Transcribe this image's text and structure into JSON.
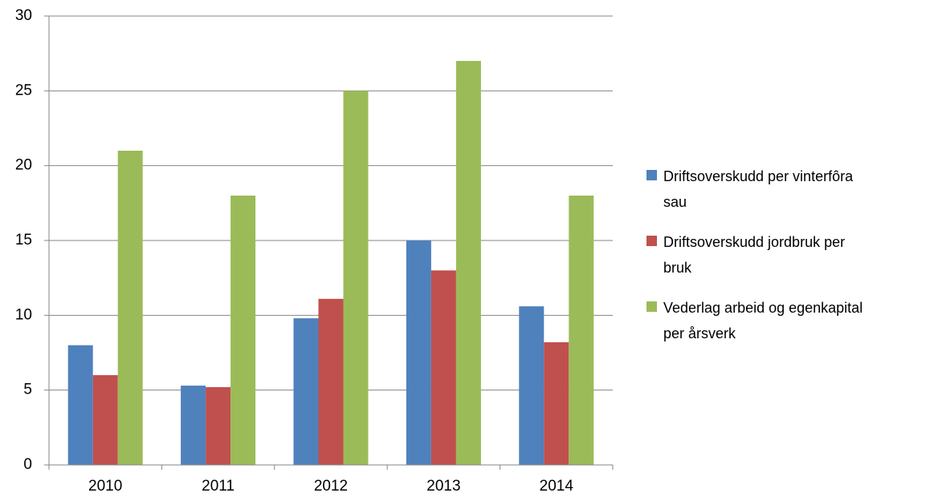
{
  "chart_data": {
    "type": "bar",
    "categories": [
      "2010",
      "2011",
      "2012",
      "2013",
      "2014"
    ],
    "series": [
      {
        "name": "Driftsoverskudd per vinterfôra sau",
        "color": "#4f81bd",
        "values": [
          8,
          5.3,
          9.8,
          15,
          10.6
        ]
      },
      {
        "name": "Driftsoverskudd jordbruk per bruk",
        "color": "#c0504d",
        "values": [
          6,
          5.2,
          11.1,
          13,
          8.2
        ]
      },
      {
        "name": "Vederlag arbeid og egenkapital per årsverk",
        "color": "#9bbb59",
        "values": [
          21,
          18,
          25,
          27,
          18
        ]
      }
    ],
    "ylim": [
      0,
      30
    ],
    "yticks": [
      0,
      5,
      10,
      15,
      20,
      25,
      30
    ],
    "grid": true,
    "legend": "right"
  }
}
